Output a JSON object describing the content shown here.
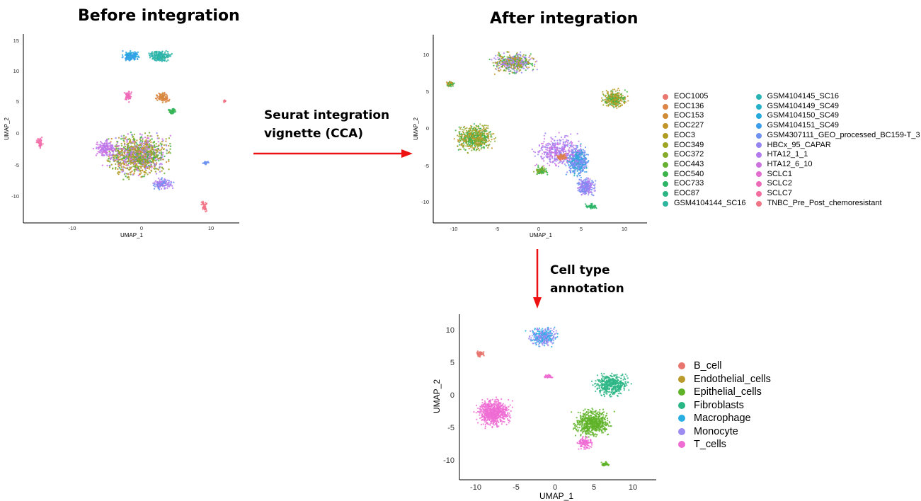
{
  "titles": {
    "before": "Before integration",
    "after": "After integration"
  },
  "steps": {
    "integration": "Seurat integration\nvignette (CCA)",
    "annotation": "Cell type\nannotation"
  },
  "plots": {
    "before": {
      "xlabel": "UMAP_1",
      "ylabel": "UMAP_2",
      "xticks": [
        "-10",
        "0",
        "10"
      ],
      "yticks": [
        "15",
        "10",
        "5",
        "0",
        "-5",
        "-10"
      ]
    },
    "after": {
      "xlabel": "UMAP_1",
      "ylabel": "UMAP_2",
      "xticks": [
        "-10",
        "-5",
        "0",
        "5",
        "10"
      ],
      "yticks": [
        "10",
        "5",
        "0",
        "-5",
        "-10"
      ]
    },
    "celltype": {
      "xlabel": "UMAP_1",
      "ylabel": "UMAP_2",
      "xticks": [
        "-10",
        "-5",
        "0",
        "5",
        "10"
      ],
      "yticks": [
        "10",
        "5",
        "0",
        "-5",
        "-10"
      ]
    }
  },
  "sample_legend": [
    {
      "label": "EOC1005",
      "color": "#e8776e"
    },
    {
      "label": "EOC136",
      "color": "#dd8447"
    },
    {
      "label": "EOC153",
      "color": "#d08b35"
    },
    {
      "label": "EOC227",
      "color": "#c2942a"
    },
    {
      "label": "EOC3",
      "color": "#b19c23"
    },
    {
      "label": "EOC349",
      "color": "#9ea524"
    },
    {
      "label": "EOC372",
      "color": "#86ab2c"
    },
    {
      "label": "EOC443",
      "color": "#66b032"
    },
    {
      "label": "EOC540",
      "color": "#3cb449"
    },
    {
      "label": "EOC733",
      "color": "#2db466"
    },
    {
      "label": "EOC87",
      "color": "#2fb583"
    },
    {
      "label": "GSM4104144_SC16",
      "color": "#2fb59d"
    },
    {
      "label": "GSM4104145_SC16",
      "color": "#2ab3b4"
    },
    {
      "label": "GSM4104149_SC49",
      "color": "#25b0c9"
    },
    {
      "label": "GSM4104150_SC49",
      "color": "#25a9dc"
    },
    {
      "label": "GSM4104151_SC49",
      "color": "#3a9deb"
    },
    {
      "label": "GSM4307111_GEO_processed_BC159-T_3",
      "color": "#6c91f2"
    },
    {
      "label": "HBCx_95_CAPAR",
      "color": "#9585f3"
    },
    {
      "label": "HTA12_1_1",
      "color": "#b47bee"
    },
    {
      "label": "HTA12_6_10",
      "color": "#cf72e1"
    },
    {
      "label": "SCLC1",
      "color": "#e36ccf"
    },
    {
      "label": "SCLC2",
      "color": "#ee6bb8"
    },
    {
      "label": "SCLC7",
      "color": "#f36e9f"
    },
    {
      "label": "TNBC_Pre_Post_chemoresistant",
      "color": "#f07386"
    }
  ],
  "celltype_legend": [
    {
      "label": "B_cell",
      "color": "#e8766e"
    },
    {
      "label": "Endothelial_cells",
      "color": "#b99a2b"
    },
    {
      "label": "Epithelial_cells",
      "color": "#5fb328"
    },
    {
      "label": "Fibroblasts",
      "color": "#2bb686"
    },
    {
      "label": "Macrophage",
      "color": "#29aee4"
    },
    {
      "label": "Monocyte",
      "color": "#9c8cf2"
    },
    {
      "label": "T_cells",
      "color": "#ef6cd4"
    }
  ]
}
